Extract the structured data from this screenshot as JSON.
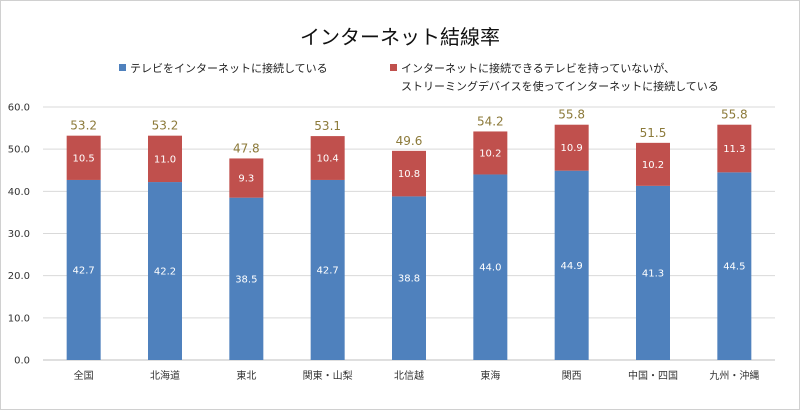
{
  "chart_data": {
    "type": "bar",
    "stacked": true,
    "title": "インターネット結線率",
    "categories": [
      "全国",
      "北海道",
      "東北",
      "関東・山梨",
      "北信越",
      "東海",
      "関西",
      "中国・四国",
      "九州・沖縄"
    ],
    "series": [
      {
        "name": "テレビをインターネットに接続している",
        "color": "#4f81bd",
        "values": [
          42.7,
          42.2,
          38.5,
          42.7,
          38.8,
          44.0,
          44.9,
          41.3,
          44.5
        ],
        "labels": [
          "42.7",
          "42.2",
          "38.5",
          "42.7",
          "38.8",
          "44.0",
          "44.9",
          "41.3",
          "44.5"
        ]
      },
      {
        "name_line1": "インターネットに接続できるテレビを持っていないが、",
        "name_line2": "ストリーミングデバイスを使ってインターネットに接続している",
        "color": "#c0504d",
        "values": [
          10.5,
          11.0,
          9.3,
          10.4,
          10.8,
          10.2,
          10.9,
          10.2,
          11.3
        ],
        "labels": [
          "10.5",
          "11.0",
          "9.3",
          "10.4",
          "10.8",
          "10.2",
          "10.9",
          "10.2",
          "11.3"
        ]
      }
    ],
    "totals": [
      "53.2",
      "53.2",
      "47.8",
      "53.1",
      "49.6",
      "54.2",
      "55.8",
      "51.5",
      "55.8"
    ],
    "total_color": "#8c7a3a",
    "yticks": [
      "0.0",
      "10.0",
      "20.0",
      "30.0",
      "40.0",
      "50.0",
      "60.0"
    ],
    "ylim": [
      0,
      60
    ],
    "grid": true,
    "legend_position": "top"
  }
}
